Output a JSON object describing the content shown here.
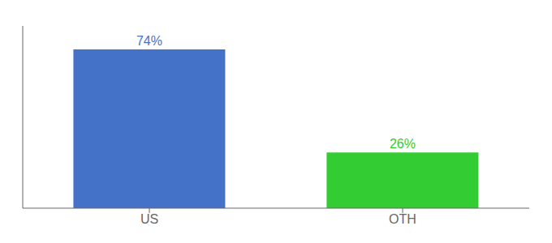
{
  "chart_data": {
    "type": "bar",
    "categories": [
      "US",
      "OTH"
    ],
    "values": [
      74,
      26
    ],
    "value_labels": [
      "74%",
      "26%"
    ],
    "colors": [
      "#4472c8",
      "#33cc33"
    ],
    "ylim": [
      0,
      85
    ],
    "grid": false,
    "data_labels": true,
    "tick_labels": "x"
  }
}
